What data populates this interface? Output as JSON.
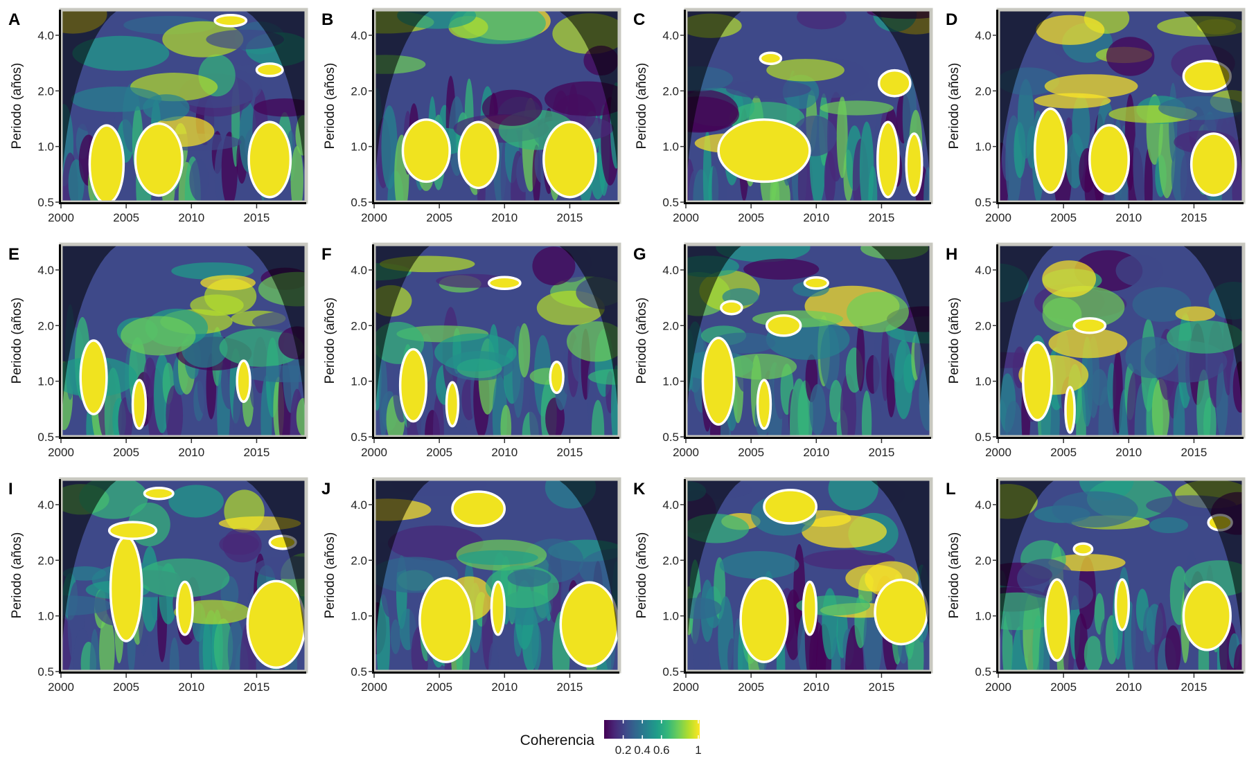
{
  "legend": {
    "title": "Coherencia",
    "ticks": [
      "0.2",
      "0.4",
      "0.6",
      "1"
    ],
    "tick_values": [
      0.2,
      0.4,
      0.6,
      1.0
    ],
    "colormap": [
      "#440154",
      "#482878",
      "#3e4989",
      "#31688e",
      "#26828e",
      "#1f9e89",
      "#35b779",
      "#6ece58",
      "#b5de2b",
      "#fde725"
    ]
  },
  "chart_data": [
    {
      "type": "heatmap",
      "label": "A",
      "ylabel": "Periodo (años)",
      "xlim": [
        2000,
        2018.8
      ],
      "x_ticks": [
        "2000",
        "2005",
        "2010",
        "2015"
      ],
      "y_ticks": [
        "0.5",
        "1.0",
        "2.0",
        "4.0"
      ],
      "y_scale": "log2",
      "ylim": [
        0.5,
        5.5
      ],
      "values_note": "",
      "blobs": [
        [
          0.0,
          0.0,
          1,
          1
        ]
      ],
      "seed": 1,
      "significant_regions": [
        {
          "x": 2003.5,
          "y": 0.8,
          "rx": 1.3,
          "ry": 0.55
        },
        {
          "x": 2007.5,
          "y": 0.85,
          "rx": 1.8,
          "ry": 0.4
        },
        {
          "x": 2016.0,
          "y": 0.85,
          "rx": 1.6,
          "ry": 0.45
        },
        {
          "x": 2013.0,
          "y": 4.8,
          "rx": 1.2,
          "ry": 0.25
        },
        {
          "x": 2016.0,
          "y": 2.6,
          "rx": 1.0,
          "ry": 0.2
        }
      ]
    },
    {
      "type": "heatmap",
      "label": "B",
      "ylabel": "Periodo (años)",
      "xlim": [
        2000,
        2018.8
      ],
      "x_ticks": [
        "2000",
        "2005",
        "2010",
        "2015"
      ],
      "y_ticks": [
        "0.5",
        "1.0",
        "2.0",
        "4.0"
      ],
      "y_scale": "log2",
      "ylim": [
        0.5,
        5.5
      ],
      "seed": 2,
      "significant_regions": [
        {
          "x": 2004.0,
          "y": 0.95,
          "rx": 1.8,
          "ry": 0.35
        },
        {
          "x": 2008.0,
          "y": 0.9,
          "rx": 1.5,
          "ry": 0.35
        },
        {
          "x": 2015.0,
          "y": 0.85,
          "rx": 2.0,
          "ry": 0.45
        }
      ]
    },
    {
      "type": "heatmap",
      "label": "C",
      "ylabel": "Periodo (años)",
      "xlim": [
        2000,
        2018.8
      ],
      "x_ticks": [
        "2000",
        "2005",
        "2010",
        "2015"
      ],
      "y_ticks": [
        "0.5",
        "1.0",
        "2.0",
        "4.0"
      ],
      "y_scale": "log2",
      "ylim": [
        0.5,
        5.5
      ],
      "seed": 3,
      "significant_regions": [
        {
          "x": 2006.0,
          "y": 0.95,
          "rx": 3.5,
          "ry": 0.35
        },
        {
          "x": 2015.5,
          "y": 0.85,
          "rx": 0.8,
          "ry": 0.45
        },
        {
          "x": 2017.5,
          "y": 0.8,
          "rx": 0.6,
          "ry": 0.3
        },
        {
          "x": 2016.0,
          "y": 2.2,
          "rx": 1.2,
          "ry": 0.35
        },
        {
          "x": 2006.5,
          "y": 3.0,
          "rx": 0.8,
          "ry": 0.2
        }
      ]
    },
    {
      "type": "heatmap",
      "label": "D",
      "ylabel": "Periodo (años)",
      "xlim": [
        2000,
        2018.8
      ],
      "x_ticks": [
        "2000",
        "2005",
        "2010",
        "2015"
      ],
      "y_ticks": [
        "0.5",
        "1.0",
        "2.0",
        "4.0"
      ],
      "y_scale": "log2",
      "ylim": [
        0.5,
        5.5
      ],
      "seed": 4,
      "significant_regions": [
        {
          "x": 2004.0,
          "y": 0.95,
          "rx": 1.2,
          "ry": 0.5
        },
        {
          "x": 2008.5,
          "y": 0.85,
          "rx": 1.5,
          "ry": 0.35
        },
        {
          "x": 2016.5,
          "y": 0.8,
          "rx": 1.7,
          "ry": 0.3
        },
        {
          "x": 2016.0,
          "y": 2.4,
          "rx": 1.8,
          "ry": 0.45
        }
      ]
    },
    {
      "type": "heatmap",
      "label": "E",
      "ylabel": "Periodo (años)",
      "xlim": [
        2000,
        2018.8
      ],
      "x_ticks": [
        "2000",
        "2005",
        "2010",
        "2015"
      ],
      "y_ticks": [
        "0.5",
        "1.0",
        "2.0",
        "4.0"
      ],
      "y_scale": "log2",
      "ylim": [
        0.5,
        5.5
      ],
      "seed": 5,
      "significant_regions": [
        {
          "x": 2002.5,
          "y": 1.05,
          "rx": 1.0,
          "ry": 0.45
        },
        {
          "x": 2006.0,
          "y": 0.75,
          "rx": 0.5,
          "ry": 0.22
        },
        {
          "x": 2014.0,
          "y": 1.0,
          "rx": 0.5,
          "ry": 0.25
        }
      ]
    },
    {
      "type": "heatmap",
      "label": "F",
      "ylabel": "Periodo (años)",
      "xlim": [
        2000,
        2018.8
      ],
      "x_ticks": [
        "2000",
        "2005",
        "2010",
        "2015"
      ],
      "y_ticks": [
        "0.5",
        "1.0",
        "2.0",
        "4.0"
      ],
      "y_scale": "log2",
      "ylim": [
        0.5,
        5.5
      ],
      "seed": 6,
      "significant_regions": [
        {
          "x": 2003.0,
          "y": 0.95,
          "rx": 1.0,
          "ry": 0.4
        },
        {
          "x": 2006.0,
          "y": 0.75,
          "rx": 0.45,
          "ry": 0.2
        },
        {
          "x": 2010.0,
          "y": 3.4,
          "rx": 1.2,
          "ry": 0.25
        },
        {
          "x": 2014.0,
          "y": 1.05,
          "rx": 0.5,
          "ry": 0.2
        }
      ]
    },
    {
      "type": "heatmap",
      "label": "G",
      "ylabel": "Periodo (años)",
      "xlim": [
        2000,
        2018.8
      ],
      "x_ticks": [
        "2000",
        "2005",
        "2010",
        "2015"
      ],
      "y_ticks": [
        "0.5",
        "1.0",
        "2.0",
        "4.0"
      ],
      "y_scale": "log2",
      "ylim": [
        0.5,
        5.5
      ],
      "seed": 7,
      "significant_regions": [
        {
          "x": 2002.5,
          "y": 1.0,
          "rx": 1.2,
          "ry": 0.5
        },
        {
          "x": 2006.0,
          "y": 0.75,
          "rx": 0.5,
          "ry": 0.22
        },
        {
          "x": 2007.5,
          "y": 2.0,
          "rx": 1.3,
          "ry": 0.25
        },
        {
          "x": 2003.5,
          "y": 2.5,
          "rx": 0.8,
          "ry": 0.2
        },
        {
          "x": 2010.0,
          "y": 3.4,
          "rx": 0.9,
          "ry": 0.22
        }
      ]
    },
    {
      "type": "heatmap",
      "label": "H",
      "ylabel": "Periodo (años)",
      "xlim": [
        2000,
        2018.8
      ],
      "x_ticks": [
        "2000",
        "2005",
        "2010",
        "2015"
      ],
      "y_ticks": [
        "0.5",
        "1.0",
        "2.0",
        "4.0"
      ],
      "y_scale": "log2",
      "ylim": [
        0.5,
        5.5
      ],
      "seed": 8,
      "significant_regions": [
        {
          "x": 2003.0,
          "y": 1.0,
          "rx": 1.1,
          "ry": 0.45
        },
        {
          "x": 2005.5,
          "y": 0.7,
          "rx": 0.35,
          "ry": 0.2
        },
        {
          "x": 2007.0,
          "y": 2.0,
          "rx": 1.2,
          "ry": 0.18
        }
      ]
    },
    {
      "type": "heatmap",
      "label": "I",
      "ylabel": "Periodo (años)",
      "xlim": [
        2000,
        2018.8
      ],
      "x_ticks": [
        "2000",
        "2005",
        "2010",
        "2015"
      ],
      "y_ticks": [
        "0.5",
        "1.0",
        "2.0",
        "4.0"
      ],
      "y_scale": "log2",
      "ylim": [
        0.5,
        5.5
      ],
      "seed": 9,
      "significant_regions": [
        {
          "x": 2005.0,
          "y": 1.4,
          "rx": 1.2,
          "ry": 0.8
        },
        {
          "x": 2005.5,
          "y": 2.9,
          "rx": 1.8,
          "ry": 0.3
        },
        {
          "x": 2007.5,
          "y": 4.6,
          "rx": 1.1,
          "ry": 0.3
        },
        {
          "x": 2009.5,
          "y": 1.1,
          "rx": 0.6,
          "ry": 0.35
        },
        {
          "x": 2016.5,
          "y": 0.9,
          "rx": 2.2,
          "ry": 0.6
        },
        {
          "x": 2017.0,
          "y": 2.5,
          "rx": 1.0,
          "ry": 0.2
        }
      ]
    },
    {
      "type": "heatmap",
      "label": "J",
      "ylabel": "Periodo (años)",
      "xlim": [
        2000,
        2018.8
      ],
      "x_ticks": [
        "2000",
        "2005",
        "2010",
        "2015"
      ],
      "y_ticks": [
        "0.5",
        "1.0",
        "2.0",
        "4.0"
      ],
      "y_scale": "log2",
      "ylim": [
        0.5,
        5.5
      ],
      "seed": 10,
      "significant_regions": [
        {
          "x": 2005.5,
          "y": 0.95,
          "rx": 2.0,
          "ry": 0.5
        },
        {
          "x": 2009.5,
          "y": 1.1,
          "rx": 0.5,
          "ry": 0.35
        },
        {
          "x": 2008.0,
          "y": 3.8,
          "rx": 2.0,
          "ry": 0.8
        },
        {
          "x": 2016.5,
          "y": 0.9,
          "rx": 2.2,
          "ry": 0.55
        }
      ]
    },
    {
      "type": "heatmap",
      "label": "K",
      "ylabel": "Periodo (años)",
      "xlim": [
        2000,
        2018.8
      ],
      "x_ticks": [
        "2000",
        "2005",
        "2010",
        "2015"
      ],
      "y_ticks": [
        "0.5",
        "1.0",
        "2.0",
        "4.0"
      ],
      "y_scale": "log2",
      "ylim": [
        0.5,
        5.5
      ],
      "seed": 11,
      "significant_regions": [
        {
          "x": 2006.0,
          "y": 0.95,
          "rx": 1.8,
          "ry": 0.5
        },
        {
          "x": 2009.5,
          "y": 1.1,
          "rx": 0.5,
          "ry": 0.35
        },
        {
          "x": 2008.0,
          "y": 3.9,
          "rx": 2.0,
          "ry": 0.8
        },
        {
          "x": 2016.5,
          "y": 1.05,
          "rx": 2.0,
          "ry": 0.4
        }
      ]
    },
    {
      "type": "heatmap",
      "label": "L",
      "ylabel": "Periodo (años)",
      "xlim": [
        2000,
        2018.8
      ],
      "x_ticks": [
        "2000",
        "2005",
        "2010",
        "2015"
      ],
      "y_ticks": [
        "0.5",
        "1.0",
        "2.0",
        "4.0"
      ],
      "y_scale": "log2",
      "ylim": [
        0.5,
        5.5
      ],
      "seed": 12,
      "significant_regions": [
        {
          "x": 2004.5,
          "y": 0.95,
          "rx": 0.9,
          "ry": 0.45
        },
        {
          "x": 2009.5,
          "y": 1.15,
          "rx": 0.5,
          "ry": 0.35
        },
        {
          "x": 2006.5,
          "y": 2.3,
          "rx": 0.7,
          "ry": 0.15
        },
        {
          "x": 2016.0,
          "y": 1.0,
          "rx": 1.8,
          "ry": 0.4
        },
        {
          "x": 2017.0,
          "y": 3.2,
          "rx": 0.9,
          "ry": 0.3
        }
      ]
    }
  ]
}
